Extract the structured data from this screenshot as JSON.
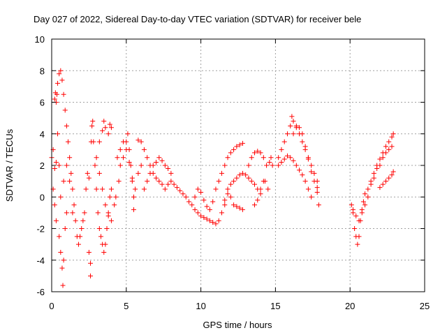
{
  "chart_data": {
    "type": "scatter",
    "title": "Day 027 of 2022, Sidereal Day-to-day VTEC variation (SDTVAR) for receiver bele",
    "xlabel": "GPS time / hours",
    "ylabel": "SDTVAR / TECUs",
    "xlim": [
      0,
      25
    ],
    "ylim": [
      -6,
      10
    ],
    "xticks": [
      0,
      5,
      10,
      15,
      20,
      25
    ],
    "yticks": [
      -6,
      -4,
      -2,
      0,
      2,
      4,
      6,
      8,
      10
    ],
    "xtick_labels": [
      "0",
      "5",
      "10",
      "15",
      "20",
      "25"
    ],
    "ytick_labels": [
      "-6",
      "-4",
      "-2",
      "0",
      "2",
      "4",
      "6",
      "8",
      "10"
    ],
    "grid": true,
    "marker": "+",
    "color": "#ff0000",
    "series": [
      {
        "name": "SDTVAR",
        "points": [
          [
            0.0,
            2.5
          ],
          [
            0.1,
            3.0
          ],
          [
            0.2,
            1.8
          ],
          [
            0.3,
            2.2
          ],
          [
            0.35,
            6.5
          ],
          [
            0.4,
            7.2
          ],
          [
            0.5,
            7.8
          ],
          [
            0.6,
            8.0
          ],
          [
            0.7,
            7.4
          ],
          [
            0.8,
            6.5
          ],
          [
            0.9,
            5.5
          ],
          [
            1.0,
            4.5
          ],
          [
            1.1,
            3.5
          ],
          [
            1.2,
            2.5
          ],
          [
            1.3,
            1.5
          ],
          [
            1.4,
            0.5
          ],
          [
            1.5,
            -0.5
          ],
          [
            1.6,
            -1.5
          ],
          [
            1.7,
            -2.5
          ],
          [
            1.8,
            -3.0
          ],
          [
            0.1,
            0.5
          ],
          [
            0.2,
            -0.5
          ],
          [
            0.3,
            -1.5
          ],
          [
            0.5,
            -2.5
          ],
          [
            0.6,
            -3.5
          ],
          [
            0.7,
            -4.5
          ],
          [
            0.75,
            -5.6
          ],
          [
            0.8,
            -4.0
          ],
          [
            0.9,
            -2.0
          ],
          [
            1.0,
            -1.0
          ],
          [
            0.2,
            6.2
          ],
          [
            0.25,
            6.6
          ],
          [
            0.3,
            6.0
          ],
          [
            0.4,
            4.0
          ],
          [
            0.5,
            2.0
          ],
          [
            0.6,
            0.0
          ],
          [
            0.8,
            1.0
          ],
          [
            1.0,
            2.0
          ],
          [
            1.2,
            1.0
          ],
          [
            1.4,
            -1.0
          ],
          [
            1.9,
            -2.5
          ],
          [
            2.0,
            -2.0
          ],
          [
            2.1,
            -1.5
          ],
          [
            2.2,
            -1.0
          ],
          [
            2.3,
            0.5
          ],
          [
            2.4,
            1.5
          ],
          [
            2.5,
            1.2
          ],
          [
            2.5,
            -3.5
          ],
          [
            2.6,
            -4.2
          ],
          [
            2.6,
            -5.0
          ],
          [
            2.65,
            3.5
          ],
          [
            2.7,
            4.5
          ],
          [
            2.75,
            4.8
          ],
          [
            2.8,
            3.5
          ],
          [
            2.9,
            2.0
          ],
          [
            3.0,
            0.5
          ],
          [
            3.1,
            -1.0
          ],
          [
            3.2,
            -2.0
          ],
          [
            3.3,
            -2.5
          ],
          [
            3.4,
            -3.0
          ],
          [
            3.5,
            -3.5
          ],
          [
            3.6,
            -3.0
          ],
          [
            3.7,
            -2.0
          ],
          [
            3.8,
            -1.0
          ],
          [
            3.9,
            0.0
          ],
          [
            4.0,
            0.5
          ],
          [
            3.2,
            3.5
          ],
          [
            3.4,
            4.2
          ],
          [
            3.5,
            4.8
          ],
          [
            3.6,
            4.4
          ],
          [
            3.8,
            4.0
          ],
          [
            3.9,
            4.6
          ],
          [
            4.0,
            4.4
          ],
          [
            3.0,
            2.5
          ],
          [
            3.2,
            1.5
          ],
          [
            3.4,
            0.5
          ],
          [
            3.6,
            -0.5
          ],
          [
            3.8,
            -1.2
          ],
          [
            4.0,
            -1.5
          ],
          [
            4.2,
            -0.5
          ],
          [
            4.3,
            0.0
          ],
          [
            4.5,
            1.0
          ],
          [
            4.6,
            2.0
          ],
          [
            4.8,
            2.5
          ],
          [
            5.0,
            3.5
          ],
          [
            5.1,
            4.0
          ],
          [
            5.2,
            3.0
          ],
          [
            5.3,
            2.0
          ],
          [
            5.4,
            1.0
          ],
          [
            5.5,
            0.0
          ],
          [
            4.4,
            2.5
          ],
          [
            4.6,
            3.0
          ],
          [
            4.8,
            3.5
          ],
          [
            5.0,
            3.0
          ],
          [
            5.2,
            2.2
          ],
          [
            5.4,
            1.2
          ],
          [
            5.5,
            -0.8
          ],
          [
            5.6,
            0.5
          ],
          [
            5.8,
            1.5
          ],
          [
            6.0,
            2.0
          ],
          [
            5.8,
            3.6
          ],
          [
            6.0,
            3.5
          ],
          [
            6.2,
            3.0
          ],
          [
            6.4,
            2.5
          ],
          [
            6.6,
            2.0
          ],
          [
            6.8,
            1.5
          ],
          [
            7.0,
            1.2
          ],
          [
            6.2,
            0.5
          ],
          [
            6.4,
            1.0
          ],
          [
            6.6,
            1.5
          ],
          [
            6.8,
            2.0
          ],
          [
            7.0,
            2.2
          ],
          [
            7.2,
            2.5
          ],
          [
            7.4,
            2.3
          ],
          [
            7.6,
            2.0
          ],
          [
            7.8,
            1.8
          ],
          [
            8.0,
            1.5
          ],
          [
            7.2,
            1.0
          ],
          [
            7.4,
            0.8
          ],
          [
            7.6,
            0.5
          ],
          [
            7.8,
            0.8
          ],
          [
            8.0,
            1.0
          ],
          [
            8.2,
            0.8
          ],
          [
            8.4,
            0.6
          ],
          [
            8.6,
            0.4
          ],
          [
            8.8,
            0.2
          ],
          [
            9.0,
            0.0
          ],
          [
            9.2,
            -0.3
          ],
          [
            9.4,
            -0.5
          ],
          [
            9.6,
            -0.8
          ],
          [
            9.8,
            -1.0
          ],
          [
            10.0,
            -1.2
          ],
          [
            10.2,
            -1.3
          ],
          [
            10.4,
            -1.4
          ],
          [
            10.6,
            -1.5
          ],
          [
            10.8,
            -1.6
          ],
          [
            11.0,
            -1.7
          ],
          [
            11.2,
            -1.5
          ],
          [
            11.4,
            -1.0
          ],
          [
            11.6,
            -0.5
          ],
          [
            9.6,
            0.0
          ],
          [
            9.8,
            0.5
          ],
          [
            10.0,
            0.3
          ],
          [
            10.2,
            -0.2
          ],
          [
            10.4,
            -0.6
          ],
          [
            10.6,
            -0.8
          ],
          [
            10.8,
            -0.3
          ],
          [
            11.0,
            0.5
          ],
          [
            11.2,
            1.0
          ],
          [
            11.4,
            1.5
          ],
          [
            11.6,
            2.0
          ],
          [
            11.8,
            2.5
          ],
          [
            12.0,
            2.8
          ],
          [
            12.2,
            3.0
          ],
          [
            12.4,
            3.2
          ],
          [
            12.6,
            3.3
          ],
          [
            12.8,
            3.4
          ],
          [
            11.8,
            0.5
          ],
          [
            12.0,
            0.0
          ],
          [
            12.2,
            -0.5
          ],
          [
            12.4,
            -0.6
          ],
          [
            12.6,
            -0.7
          ],
          [
            12.8,
            -0.8
          ],
          [
            11.6,
            -0.2
          ],
          [
            11.8,
            0.2
          ],
          [
            12.0,
            0.8
          ],
          [
            12.2,
            1.0
          ],
          [
            12.4,
            1.2
          ],
          [
            12.6,
            1.4
          ],
          [
            12.8,
            1.5
          ],
          [
            13.0,
            1.4
          ],
          [
            13.2,
            1.2
          ],
          [
            13.4,
            1.0
          ],
          [
            13.6,
            0.8
          ],
          [
            13.8,
            0.5
          ],
          [
            14.0,
            0.2
          ],
          [
            13.2,
            2.0
          ],
          [
            13.4,
            2.5
          ],
          [
            13.6,
            2.8
          ],
          [
            13.8,
            2.9
          ],
          [
            14.0,
            2.8
          ],
          [
            14.2,
            2.5
          ],
          [
            14.4,
            2.0
          ],
          [
            13.6,
            -0.5
          ],
          [
            13.8,
            -0.2
          ],
          [
            14.0,
            0.5
          ],
          [
            14.2,
            1.0
          ],
          [
            14.3,
            1.0
          ],
          [
            14.5,
            0.5
          ],
          [
            14.6,
            2.2
          ],
          [
            14.7,
            2.5
          ],
          [
            14.8,
            2.0
          ],
          [
            15.2,
            2.5
          ],
          [
            15.4,
            3.0
          ],
          [
            15.6,
            3.5
          ],
          [
            15.8,
            4.0
          ],
          [
            16.0,
            4.5
          ],
          [
            16.1,
            5.1
          ],
          [
            16.2,
            4.8
          ],
          [
            16.4,
            4.4
          ],
          [
            16.6,
            4.0
          ],
          [
            16.8,
            3.5
          ],
          [
            17.0,
            3.0
          ],
          [
            17.2,
            2.5
          ],
          [
            17.4,
            2.0
          ],
          [
            17.6,
            1.5
          ],
          [
            17.8,
            1.0
          ],
          [
            15.2,
            2.0
          ],
          [
            15.4,
            2.2
          ],
          [
            15.6,
            2.4
          ],
          [
            15.8,
            2.6
          ],
          [
            16.0,
            2.5
          ],
          [
            16.2,
            2.3
          ],
          [
            16.4,
            2.0
          ],
          [
            16.6,
            1.7
          ],
          [
            16.8,
            1.4
          ],
          [
            17.0,
            1.0
          ],
          [
            17.2,
            0.5
          ],
          [
            17.4,
            0.0
          ],
          [
            16.2,
            4.0
          ],
          [
            16.4,
            4.5
          ],
          [
            16.6,
            4.4
          ],
          [
            16.8,
            4.0
          ],
          [
            17.0,
            3.2
          ],
          [
            17.2,
            2.4
          ],
          [
            17.4,
            1.6
          ],
          [
            17.6,
            1.0
          ],
          [
            17.8,
            0.6
          ],
          [
            17.9,
            -0.5
          ],
          [
            17.8,
            0.3
          ],
          [
            20.1,
            -0.5
          ],
          [
            20.2,
            -1.0
          ],
          [
            20.3,
            -2.0
          ],
          [
            20.4,
            -2.5
          ],
          [
            20.5,
            -3.0
          ],
          [
            20.6,
            -2.5
          ],
          [
            20.7,
            -1.5
          ],
          [
            20.8,
            -0.8
          ],
          [
            20.9,
            -0.3
          ],
          [
            21.0,
            0.2
          ],
          [
            21.2,
            0.5
          ],
          [
            21.4,
            1.0
          ],
          [
            21.6,
            1.5
          ],
          [
            21.8,
            2.0
          ],
          [
            22.0,
            2.4
          ],
          [
            22.2,
            2.8
          ],
          [
            22.4,
            3.2
          ],
          [
            22.6,
            3.5
          ],
          [
            22.8,
            3.8
          ],
          [
            22.9,
            4.0
          ],
          [
            21.0,
            -0.5
          ],
          [
            21.2,
            0.0
          ],
          [
            21.4,
            0.8
          ],
          [
            21.6,
            1.2
          ],
          [
            21.8,
            1.8
          ],
          [
            22.0,
            2.0
          ],
          [
            22.2,
            2.5
          ],
          [
            22.4,
            2.8
          ],
          [
            22.6,
            3.0
          ],
          [
            22.8,
            3.2
          ],
          [
            22.0,
            0.6
          ],
          [
            22.2,
            0.8
          ],
          [
            22.4,
            1.0
          ],
          [
            22.6,
            1.2
          ],
          [
            22.8,
            1.4
          ],
          [
            22.9,
            1.6
          ],
          [
            20.2,
            -0.8
          ],
          [
            20.4,
            -1.2
          ],
          [
            20.6,
            -1.5
          ],
          [
            20.8,
            -1.0
          ]
        ]
      }
    ]
  }
}
